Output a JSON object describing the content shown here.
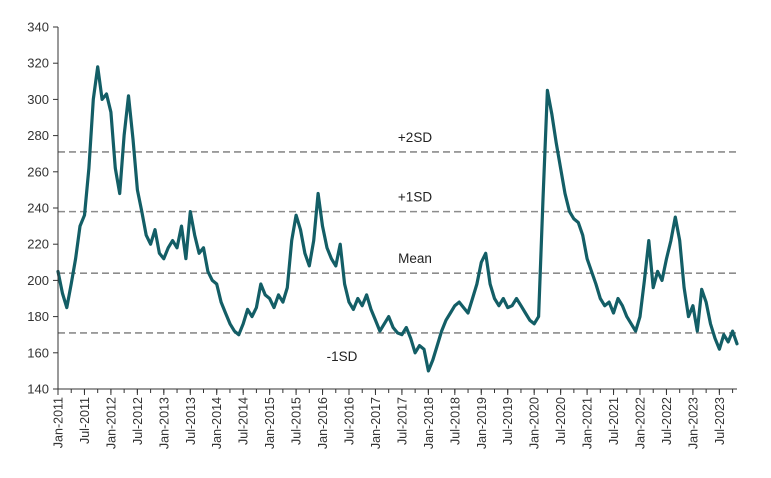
{
  "chart_data": {
    "type": "line",
    "title": "",
    "xlabel": "",
    "ylabel": "",
    "ylim": [
      140,
      340
    ],
    "yticks": [
      140,
      160,
      180,
      200,
      220,
      240,
      260,
      280,
      300,
      320,
      340
    ],
    "xlim": [
      "2011-01",
      "2023-11"
    ],
    "xtick_labels": [
      "Jan-2011",
      "Jul-2011",
      "Jan-2012",
      "Jul-2012",
      "Jan-2013",
      "Jul-2013",
      "Jan-2014",
      "Jul-2014",
      "Jan-2015",
      "Jul-2015",
      "Jan-2016",
      "Jul-2016",
      "Jan-2017",
      "Jul-2017",
      "Jan-2018",
      "Jul-2018",
      "Jan-2019",
      "Jul-2019",
      "Jan-2020",
      "Jul-2020",
      "Jan-2021",
      "Jul-2021",
      "Jan-2022",
      "Jul-2022",
      "Jan-2023",
      "Jul-2023"
    ],
    "grid": false,
    "legend": "none",
    "reference_lines": [
      {
        "label": "+2SD",
        "value": 271
      },
      {
        "label": "+1SD",
        "value": 238
      },
      {
        "label": "Mean",
        "value": 204
      },
      {
        "label": "-1SD",
        "value": 171
      }
    ],
    "series": [
      {
        "color": "#135e66",
        "points": [
          [
            "2011-01",
            205
          ],
          [
            "2011-02",
            193
          ],
          [
            "2011-03",
            185
          ],
          [
            "2011-04",
            198
          ],
          [
            "2011-05",
            212
          ],
          [
            "2011-06",
            230
          ],
          [
            "2011-07",
            236
          ],
          [
            "2011-08",
            262
          ],
          [
            "2011-09",
            300
          ],
          [
            "2011-10",
            318
          ],
          [
            "2011-11",
            300
          ],
          [
            "2011-12",
            303
          ],
          [
            "2012-01",
            293
          ],
          [
            "2012-02",
            262
          ],
          [
            "2012-03",
            248
          ],
          [
            "2012-04",
            280
          ],
          [
            "2012-05",
            302
          ],
          [
            "2012-06",
            278
          ],
          [
            "2012-07",
            250
          ],
          [
            "2012-08",
            238
          ],
          [
            "2012-09",
            225
          ],
          [
            "2012-10",
            220
          ],
          [
            "2012-11",
            228
          ],
          [
            "2012-12",
            215
          ],
          [
            "2013-01",
            212
          ],
          [
            "2013-02",
            218
          ],
          [
            "2013-03",
            222
          ],
          [
            "2013-04",
            218
          ],
          [
            "2013-05",
            230
          ],
          [
            "2013-06",
            212
          ],
          [
            "2013-07",
            238
          ],
          [
            "2013-08",
            225
          ],
          [
            "2013-09",
            215
          ],
          [
            "2013-10",
            218
          ],
          [
            "2013-11",
            205
          ],
          [
            "2013-12",
            200
          ],
          [
            "2014-01",
            198
          ],
          [
            "2014-02",
            188
          ],
          [
            "2014-03",
            182
          ],
          [
            "2014-04",
            176
          ],
          [
            "2014-05",
            172
          ],
          [
            "2014-06",
            170
          ],
          [
            "2014-07",
            176
          ],
          [
            "2014-08",
            184
          ],
          [
            "2014-09",
            180
          ],
          [
            "2014-10",
            185
          ],
          [
            "2014-11",
            198
          ],
          [
            "2014-12",
            192
          ],
          [
            "2015-01",
            190
          ],
          [
            "2015-02",
            185
          ],
          [
            "2015-03",
            192
          ],
          [
            "2015-04",
            188
          ],
          [
            "2015-05",
            196
          ],
          [
            "2015-06",
            222
          ],
          [
            "2015-07",
            236
          ],
          [
            "2015-08",
            228
          ],
          [
            "2015-09",
            215
          ],
          [
            "2015-10",
            208
          ],
          [
            "2015-11",
            222
          ],
          [
            "2015-12",
            248
          ],
          [
            "2016-01",
            230
          ],
          [
            "2016-02",
            218
          ],
          [
            "2016-03",
            212
          ],
          [
            "2016-04",
            208
          ],
          [
            "2016-05",
            220
          ],
          [
            "2016-06",
            198
          ],
          [
            "2016-07",
            188
          ],
          [
            "2016-08",
            184
          ],
          [
            "2016-09",
            190
          ],
          [
            "2016-10",
            186
          ],
          [
            "2016-11",
            192
          ],
          [
            "2016-12",
            184
          ],
          [
            "2017-01",
            178
          ],
          [
            "2017-02",
            172
          ],
          [
            "2017-03",
            176
          ],
          [
            "2017-04",
            180
          ],
          [
            "2017-05",
            174
          ],
          [
            "2017-06",
            171
          ],
          [
            "2017-07",
            170
          ],
          [
            "2017-08",
            174
          ],
          [
            "2017-09",
            168
          ],
          [
            "2017-10",
            160
          ],
          [
            "2017-11",
            164
          ],
          [
            "2017-12",
            162
          ],
          [
            "2018-01",
            150
          ],
          [
            "2018-02",
            156
          ],
          [
            "2018-03",
            164
          ],
          [
            "2018-04",
            172
          ],
          [
            "2018-05",
            178
          ],
          [
            "2018-06",
            182
          ],
          [
            "2018-07",
            186
          ],
          [
            "2018-08",
            188
          ],
          [
            "2018-09",
            185
          ],
          [
            "2018-10",
            182
          ],
          [
            "2018-11",
            190
          ],
          [
            "2018-12",
            198
          ],
          [
            "2019-01",
            210
          ],
          [
            "2019-02",
            215
          ],
          [
            "2019-03",
            198
          ],
          [
            "2019-04",
            190
          ],
          [
            "2019-05",
            186
          ],
          [
            "2019-06",
            190
          ],
          [
            "2019-07",
            185
          ],
          [
            "2019-08",
            186
          ],
          [
            "2019-09",
            190
          ],
          [
            "2019-10",
            186
          ],
          [
            "2019-11",
            182
          ],
          [
            "2019-12",
            178
          ],
          [
            "2020-01",
            176
          ],
          [
            "2020-02",
            180
          ],
          [
            "2020-03",
            245
          ],
          [
            "2020-04",
            305
          ],
          [
            "2020-05",
            292
          ],
          [
            "2020-06",
            276
          ],
          [
            "2020-07",
            262
          ],
          [
            "2020-08",
            248
          ],
          [
            "2020-09",
            238
          ],
          [
            "2020-10",
            234
          ],
          [
            "2020-11",
            232
          ],
          [
            "2020-12",
            225
          ],
          [
            "2021-01",
            212
          ],
          [
            "2021-02",
            205
          ],
          [
            "2021-03",
            198
          ],
          [
            "2021-04",
            190
          ],
          [
            "2021-05",
            186
          ],
          [
            "2021-06",
            188
          ],
          [
            "2021-07",
            182
          ],
          [
            "2021-08",
            190
          ],
          [
            "2021-09",
            186
          ],
          [
            "2021-10",
            180
          ],
          [
            "2021-11",
            176
          ],
          [
            "2021-12",
            172
          ],
          [
            "2022-01",
            180
          ],
          [
            "2022-02",
            200
          ],
          [
            "2022-03",
            222
          ],
          [
            "2022-04",
            196
          ],
          [
            "2022-05",
            205
          ],
          [
            "2022-06",
            200
          ],
          [
            "2022-07",
            212
          ],
          [
            "2022-08",
            222
          ],
          [
            "2022-09",
            235
          ],
          [
            "2022-10",
            222
          ],
          [
            "2022-11",
            196
          ],
          [
            "2022-12",
            180
          ],
          [
            "2023-01",
            186
          ],
          [
            "2023-02",
            172
          ],
          [
            "2023-03",
            195
          ],
          [
            "2023-04",
            188
          ],
          [
            "2023-05",
            176
          ],
          [
            "2023-06",
            168
          ],
          [
            "2023-07",
            162
          ],
          [
            "2023-08",
            170
          ],
          [
            "2023-09",
            166
          ],
          [
            "2023-10",
            172
          ],
          [
            "2023-11",
            165
          ]
        ]
      }
    ]
  }
}
